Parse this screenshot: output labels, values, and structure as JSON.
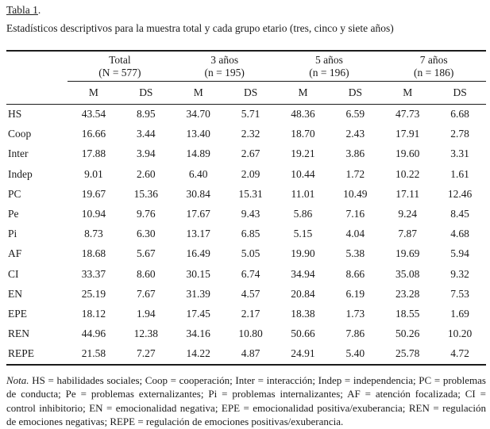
{
  "title": {
    "underlined": "Tabla 1",
    "punct": "."
  },
  "subtitle": "Estadísticos descriptivos para la muestra total y cada grupo etario (tres, cinco y siete años)",
  "table": {
    "groups": [
      {
        "line1": "Total",
        "line2": "(N = 577)"
      },
      {
        "line1": "3 años",
        "line2": "(n = 195)"
      },
      {
        "line1": "5 años",
        "line2": "(n = 196)"
      },
      {
        "line1": "7 años",
        "line2": "(n = 186)"
      }
    ],
    "measure_headers": [
      "M",
      "DS",
      "M",
      "DS",
      "M",
      "DS",
      "M",
      "DS"
    ],
    "rows": [
      {
        "label": "HS",
        "values": [
          "43.54",
          "8.95",
          "34.70",
          "5.71",
          "48.36",
          "6.59",
          "47.73",
          "6.68"
        ]
      },
      {
        "label": "Coop",
        "values": [
          "16.66",
          "3.44",
          "13.40",
          "2.32",
          "18.70",
          "2.43",
          "17.91",
          "2.78"
        ]
      },
      {
        "label": "Inter",
        "values": [
          "17.88",
          "3.94",
          "14.89",
          "2.67",
          "19.21",
          "3.86",
          "19.60",
          "3.31"
        ]
      },
      {
        "label": "Indep",
        "values": [
          "9.01",
          "2.60",
          "6.40",
          "2.09",
          "10.44",
          "1.72",
          "10.22",
          "1.61"
        ]
      },
      {
        "label": "PC",
        "values": [
          "19.67",
          "15.36",
          "30.84",
          "15.31",
          "11.01",
          "10.49",
          "17.11",
          "12.46"
        ]
      },
      {
        "label": "Pe",
        "values": [
          "10.94",
          "9.76",
          "17.67",
          "9.43",
          "5.86",
          "7.16",
          "9.24",
          "8.45"
        ]
      },
      {
        "label": "Pi",
        "values": [
          "8.73",
          "6.30",
          "13.17",
          "6.85",
          "5.15",
          "4.04",
          "7.87",
          "4.68"
        ]
      },
      {
        "label": "AF",
        "values": [
          "18.68",
          "5.67",
          "16.49",
          "5.05",
          "19.90",
          "5.38",
          "19.69",
          "5.94"
        ]
      },
      {
        "label": "CI",
        "values": [
          "33.37",
          "8.60",
          "30.15",
          "6.74",
          "34.94",
          "8.66",
          "35.08",
          "9.32"
        ]
      },
      {
        "label": "EN",
        "values": [
          "25.19",
          "7.67",
          "31.39",
          "4.57",
          "20.84",
          "6.19",
          "23.28",
          "7.53"
        ]
      },
      {
        "label": "EPE",
        "values": [
          "18.12",
          "1.94",
          "17.45",
          "2.17",
          "18.38",
          "1.73",
          "18.55",
          "1.69"
        ]
      },
      {
        "label": "REN",
        "values": [
          "44.96",
          "12.38",
          "34.16",
          "10.80",
          "50.66",
          "7.86",
          "50.26",
          "10.20"
        ]
      },
      {
        "label": "REPE",
        "values": [
          "21.58",
          "7.27",
          "14.22",
          "4.87",
          "24.91",
          "5.40",
          "25.78",
          "4.72"
        ]
      }
    ]
  },
  "note": {
    "label": "Nota.",
    "text": "HS = habilidades sociales; Coop = cooperación; Inter = interacción; Indep = independencia; PC = problemas de conducta; Pe = problemas externalizantes; Pi = problemas internalizantes; AF = atención focalizada; CI = control inhibitorio; EN = emocionalidad negativa; EPE = emocionalidad positiva/exuberancia; REN = regulación de emociones negativas; REPE = regulación de emociones positivas/exuberancia."
  },
  "colors": {
    "text": "#1b1b1b",
    "rule": "#1b1b1b",
    "background": "#ffffff"
  }
}
